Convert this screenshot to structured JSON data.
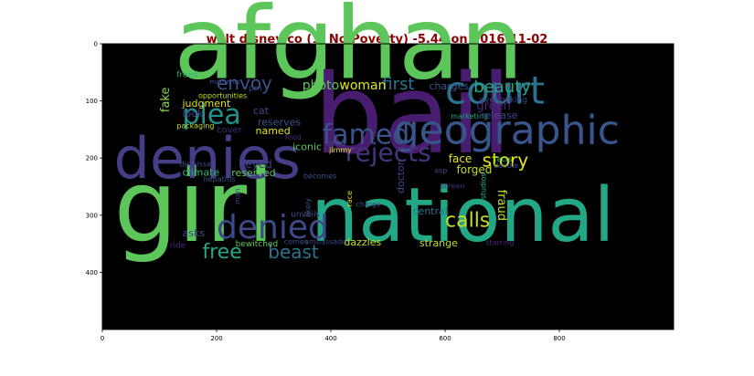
{
  "title": "walt disney co (1. No Poverty) -5.44 on 2016-11-02",
  "chart_data": {
    "type": "wordcloud",
    "title": "walt disney co (1. No Poverty) -5.44 on 2016-11-02",
    "xlim": [
      0,
      1000
    ],
    "ylim": [
      500,
      0
    ],
    "x_ticks": [
      "0",
      "200",
      "400",
      "600",
      "800"
    ],
    "y_ticks": [
      "0",
      "100",
      "200",
      "300",
      "400"
    ],
    "background": "#000000",
    "words": [
      {
        "text": "afghan",
        "x": 125,
        "y": 60,
        "size": 110,
        "color": "#5cc65a"
      },
      {
        "text": "bail",
        "x": 370,
        "y": 190,
        "size": 120,
        "color": "#481c6e"
      },
      {
        "text": "girl",
        "x": 20,
        "y": 345,
        "size": 110,
        "color": "#5cc65a"
      },
      {
        "text": "national",
        "x": 365,
        "y": 345,
        "size": 82,
        "color": "#22a884"
      },
      {
        "text": "denies",
        "x": 20,
        "y": 235,
        "size": 62,
        "color": "#433e85"
      },
      {
        "text": "geographic",
        "x": 510,
        "y": 175,
        "size": 44,
        "color": "#39568c"
      },
      {
        "text": "court",
        "x": 600,
        "y": 105,
        "size": 42,
        "color": "#2c728e"
      },
      {
        "text": "plea",
        "x": 140,
        "y": 140,
        "size": 30,
        "color": "#21918c"
      },
      {
        "text": "famed",
        "x": 385,
        "y": 175,
        "size": 30,
        "color": "#3b528b"
      },
      {
        "text": "rejects",
        "x": 425,
        "y": 205,
        "size": 28,
        "color": "#46337e"
      },
      {
        "text": "denied",
        "x": 200,
        "y": 340,
        "size": 36,
        "color": "#3e4989"
      },
      {
        "text": "envoy",
        "x": 200,
        "y": 80,
        "size": 20,
        "color": "#3b528b"
      },
      {
        "text": "first",
        "x": 490,
        "y": 80,
        "size": 18,
        "color": "#2c728e"
      },
      {
        "text": "beauty",
        "x": 650,
        "y": 85,
        "size": 18,
        "color": "#22a884"
      },
      {
        "text": "story",
        "x": 665,
        "y": 215,
        "size": 20,
        "color": "#e2e418"
      },
      {
        "text": "calls",
        "x": 600,
        "y": 320,
        "size": 22,
        "color": "#c2df23"
      },
      {
        "text": "beast",
        "x": 290,
        "y": 375,
        "size": 20,
        "color": "#2c728e"
      },
      {
        "text": "free",
        "x": 175,
        "y": 375,
        "size": 22,
        "color": "#22a884"
      },
      {
        "text": "photo",
        "x": 350,
        "y": 80,
        "size": 14,
        "color": "#5cc65a"
      },
      {
        "text": "woman",
        "x": 415,
        "y": 80,
        "size": 14,
        "color": "#e2e418"
      },
      {
        "text": "charges",
        "x": 572,
        "y": 80,
        "size": 11,
        "color": "#3b528b"
      },
      {
        "text": "fake",
        "x": 117,
        "y": 120,
        "size": 13,
        "color": "#86d549",
        "rotate": -90
      },
      {
        "text": "judgment",
        "x": 140,
        "y": 110,
        "size": 11,
        "color": "#e2e418"
      },
      {
        "text": "look",
        "x": 140,
        "y": 128,
        "size": 11,
        "color": "#433e85"
      },
      {
        "text": "opportunities",
        "x": 168,
        "y": 95,
        "size": 8,
        "color": "#bddf26"
      },
      {
        "text": "moments",
        "x": 188,
        "y": 70,
        "size": 7,
        "color": "#3b528b"
      },
      {
        "text": "freed",
        "x": 130,
        "y": 58,
        "size": 9,
        "color": "#2fb47c"
      },
      {
        "text": "pm",
        "x": 256,
        "y": 82,
        "size": 9,
        "color": "#3e4989"
      },
      {
        "text": "green",
        "x": 655,
        "y": 115,
        "size": 13,
        "color": "#482878"
      },
      {
        "text": "overlooking",
        "x": 660,
        "y": 102,
        "size": 9,
        "color": "#433e85"
      },
      {
        "text": "marketing",
        "x": 610,
        "y": 131,
        "size": 8,
        "color": "#22a884"
      },
      {
        "text": "release",
        "x": 663,
        "y": 131,
        "size": 11,
        "color": "#3e4989"
      },
      {
        "text": "cat",
        "x": 264,
        "y": 123,
        "size": 11,
        "color": "#3e4989"
      },
      {
        "text": "reserves",
        "x": 272,
        "y": 143,
        "size": 11,
        "color": "#3b528b"
      },
      {
        "text": "packaging",
        "x": 130,
        "y": 148,
        "size": 8,
        "color": "#bddf26"
      },
      {
        "text": "cover",
        "x": 200,
        "y": 156,
        "size": 10,
        "color": "#482878"
      },
      {
        "text": "named",
        "x": 268,
        "y": 158,
        "size": 11,
        "color": "#e2e418"
      },
      {
        "text": "food",
        "x": 320,
        "y": 168,
        "size": 8,
        "color": "#482878"
      },
      {
        "text": "iconic",
        "x": 333,
        "y": 186,
        "size": 11,
        "color": "#5cc65a"
      },
      {
        "text": "jimmy",
        "x": 397,
        "y": 190,
        "size": 8,
        "color": "#e2e418"
      },
      {
        "text": "dead",
        "x": 393,
        "y": 178,
        "size": 8,
        "color": "#3e4989"
      },
      {
        "text": "face",
        "x": 606,
        "y": 208,
        "size": 12,
        "color": "#e2e418"
      },
      {
        "text": "facts",
        "x": 686,
        "y": 206,
        "size": 8,
        "color": "#5cc65a"
      },
      {
        "text": "doodle",
        "x": 685,
        "y": 217,
        "size": 8,
        "color": "#3b528b"
      },
      {
        "text": "forged",
        "x": 620,
        "y": 227,
        "size": 12,
        "color": "#c2df23"
      },
      {
        "text": "fraud",
        "x": 693,
        "y": 255,
        "size": 13,
        "color": "#c2df23",
        "rotate": 90
      },
      {
        "text": "eyed",
        "x": 250,
        "y": 217,
        "size": 12,
        "color": "#433e85"
      },
      {
        "text": "dismisses",
        "x": 135,
        "y": 215,
        "size": 8,
        "color": "#3e4989"
      },
      {
        "text": "climate",
        "x": 140,
        "y": 231,
        "size": 11,
        "color": "#2fb47c"
      },
      {
        "text": "reserved",
        "x": 226,
        "y": 232,
        "size": 11,
        "color": "#5cc65a"
      },
      {
        "text": "hepatitis",
        "x": 177,
        "y": 241,
        "size": 8,
        "color": "#3b528b"
      },
      {
        "text": "becomes",
        "x": 352,
        "y": 236,
        "size": 8,
        "color": "#3b528b"
      },
      {
        "text": "asp",
        "x": 581,
        "y": 226,
        "size": 8,
        "color": "#3e4989"
      },
      {
        "text": "doctor",
        "x": 528,
        "y": 262,
        "size": 11,
        "color": "#3e4989",
        "rotate": -90
      },
      {
        "text": "screen",
        "x": 592,
        "y": 253,
        "size": 8,
        "color": "#482878"
      },
      {
        "text": "studios",
        "x": 671,
        "y": 272,
        "size": 8,
        "color": "#2fb47c",
        "rotate": -90
      },
      {
        "text": "man",
        "x": 241,
        "y": 281,
        "size": 8,
        "color": "#3e4989",
        "rotate": -90
      },
      {
        "text": "race",
        "x": 437,
        "y": 285,
        "size": 8,
        "color": "#e2e418",
        "rotate": -90
      },
      {
        "text": "charge",
        "x": 444,
        "y": 285,
        "size": 8,
        "color": "#3e4989"
      },
      {
        "text": "likely",
        "x": 364,
        "y": 303,
        "size": 8,
        "color": "#3b528b",
        "rotate": -90
      },
      {
        "text": "unveils",
        "x": 330,
        "y": 303,
        "size": 9,
        "color": "#3b528b"
      },
      {
        "text": "central",
        "x": 543,
        "y": 299,
        "size": 11,
        "color": "#2c728e"
      },
      {
        "text": "asks",
        "x": 140,
        "y": 337,
        "size": 11,
        "color": "#3e4989"
      },
      {
        "text": "ride",
        "x": 118,
        "y": 357,
        "size": 9,
        "color": "#482878"
      },
      {
        "text": "bewitched",
        "x": 233,
        "y": 355,
        "size": 9,
        "color": "#5cc65a"
      },
      {
        "text": "comes",
        "x": 318,
        "y": 351,
        "size": 8,
        "color": "#3b528b"
      },
      {
        "text": "ambassador",
        "x": 354,
        "y": 351,
        "size": 8,
        "color": "#3e4989"
      },
      {
        "text": "dazzles",
        "x": 423,
        "y": 353,
        "size": 11,
        "color": "#c2df23"
      },
      {
        "text": "strange",
        "x": 555,
        "y": 355,
        "size": 11,
        "color": "#c2df23"
      },
      {
        "text": "starring",
        "x": 671,
        "y": 352,
        "size": 8,
        "color": "#482878"
      }
    ]
  }
}
